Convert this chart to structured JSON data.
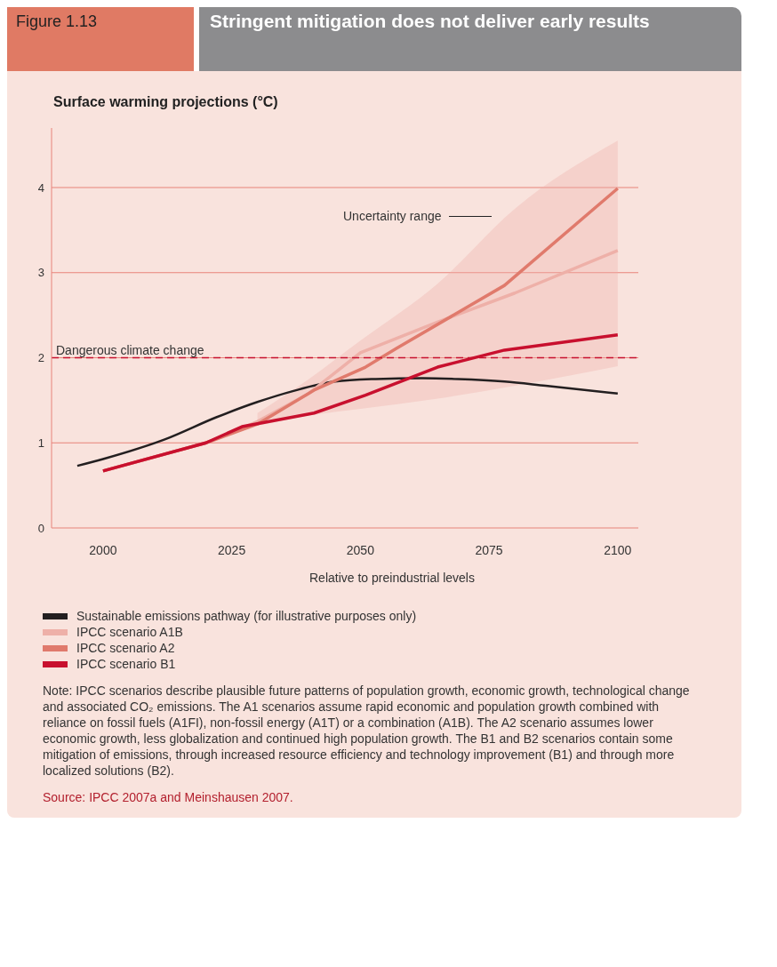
{
  "chart_data": {
    "type": "line",
    "title": "Stringent mitigation does not deliver early results",
    "ylabel": "Surface warming projections (°C)",
    "xlabel": "Relative to preindustrial levels",
    "xlim": [
      1990,
      2104
    ],
    "xticks": [
      2000,
      2025,
      2050,
      2075,
      2100
    ],
    "ylim": [
      0,
      4.7
    ],
    "yticks": [
      0,
      1,
      2,
      3,
      4
    ],
    "grid": "y",
    "legend": "bottom",
    "marker": "none",
    "line_style": "solid",
    "series": [
      {
        "name": "Sustainable emissions pathway (for illustrative purposes only)",
        "color": "#231f20",
        "x": [
          1995,
          2000,
          2012,
          2022,
          2030,
          2037,
          2045,
          2053,
          2062,
          2069,
          2078,
          2086,
          2100
        ],
        "values": [
          0.73,
          0.81,
          1.04,
          1.3,
          1.48,
          1.61,
          1.72,
          1.75,
          1.76,
          1.75,
          1.72,
          1.67,
          1.58
        ]
      },
      {
        "name": "IPCC scenario A1B",
        "color": "#eeb0a8",
        "x": [
          2000,
          2020,
          2030,
          2040,
          2050,
          2065,
          2080,
          2100
        ],
        "values": [
          0.67,
          1.0,
          1.25,
          1.58,
          2.06,
          2.42,
          2.76,
          3.26
        ],
        "lower": [
          null,
          null,
          1.2,
          1.32,
          1.4,
          1.52,
          1.67,
          1.9
        ],
        "upper": [
          null,
          null,
          1.35,
          1.75,
          2.2,
          2.87,
          3.75,
          4.55
        ]
      },
      {
        "name": "IPCC scenario A2",
        "color": "#e07a6c",
        "x": [
          2000,
          2020,
          2030,
          2041,
          2051,
          2057,
          2078,
          2100
        ],
        "values": [
          0.67,
          1.0,
          1.22,
          1.62,
          1.89,
          2.11,
          2.85,
          3.99
        ]
      },
      {
        "name": "IPCC scenario B1",
        "color": "#c8102e",
        "x": [
          2000,
          2020,
          2027,
          2041,
          2051,
          2065,
          2078,
          2100
        ],
        "values": [
          0.67,
          1.0,
          1.19,
          1.35,
          1.56,
          1.89,
          2.09,
          2.27
        ]
      }
    ],
    "ref_lines": [
      {
        "axis": "y",
        "value": 2,
        "label": "Dangerous climate change",
        "color": "#c8102e",
        "line_style": "dashed"
      }
    ],
    "annotations": [
      "Figure 1.13",
      "Uncertainty range",
      "Note: IPCC scenarios describe plausible future patterns of population growth, economic growth, technological change and associated CO₂ emissions. The A1 scenarios assume rapid economic and population growth combined with reliance on fossil fuels (A1FI), non-fossil energy (A1T) or a  combination (A1B). The A2 scenario assumes lower economic growth, less globalization and continued high population growth. The B1 and B2 scenarios contain some mitigation of emissions, through increased resource efficiency and technology improvement (B1) and through more localized solutions (B2).",
      "Source: IPCC 2007a and Meinshausen 2007."
    ]
  }
}
